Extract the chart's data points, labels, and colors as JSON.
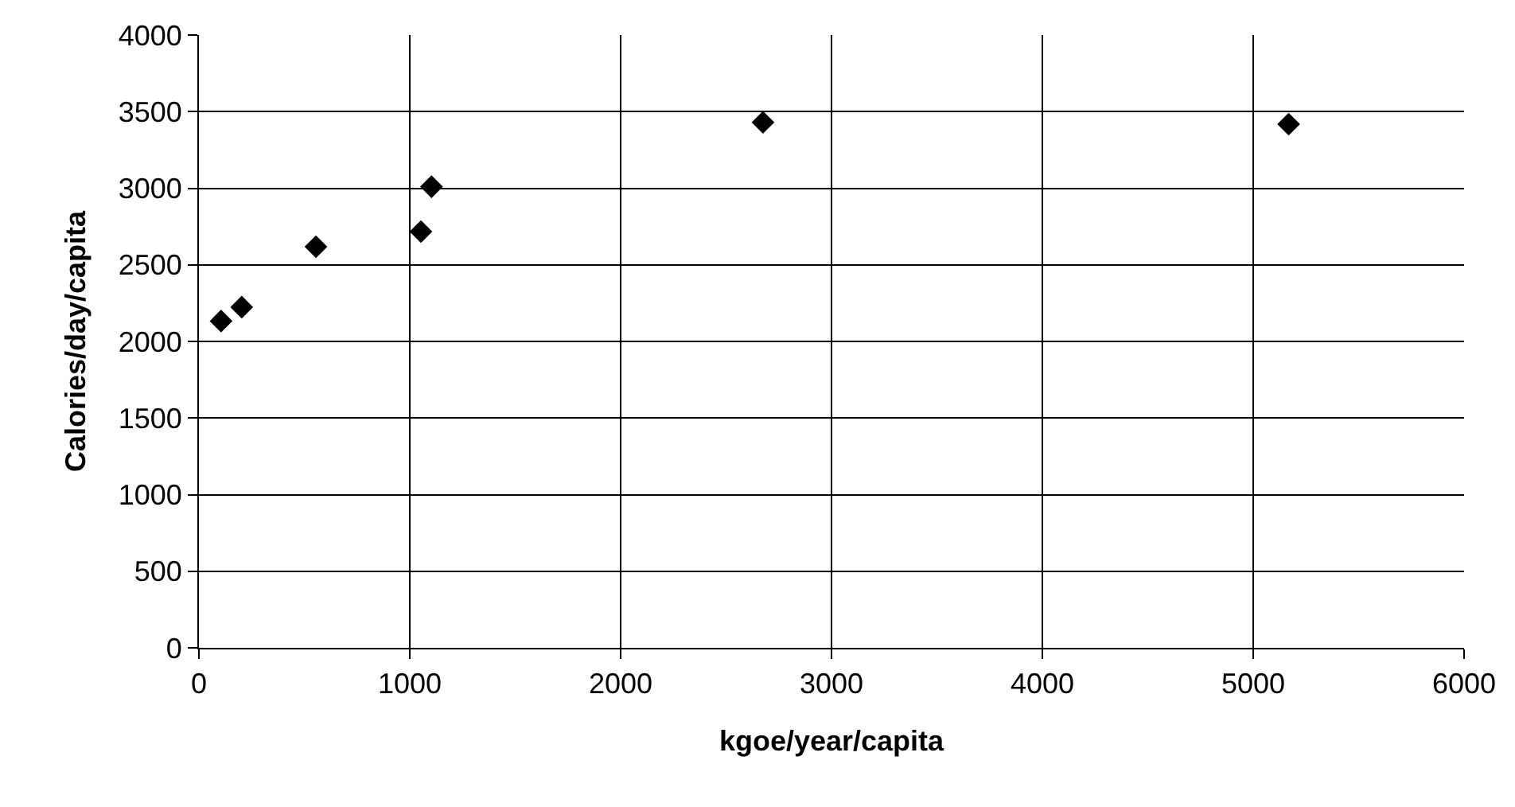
{
  "chart_data": {
    "type": "scatter",
    "xlabel": "kgoe/year/capita",
    "ylabel": "Calories/day/capita",
    "x": [
      105,
      203,
      555,
      1053,
      1103,
      2675,
      5168
    ],
    "values": [
      2133,
      2224,
      2618,
      2717,
      3010,
      3430,
      3418
    ],
    "color": "#000000",
    "marker": "diamond",
    "xlim": [
      0,
      6000
    ],
    "xticks": [
      0,
      1000,
      2000,
      3000,
      4000,
      5000,
      6000
    ],
    "ylim": [
      0,
      4000
    ],
    "yticks": [
      0,
      500,
      1000,
      1500,
      2000,
      2500,
      3000,
      3500,
      4000
    ],
    "grid": true,
    "legend": false
  }
}
